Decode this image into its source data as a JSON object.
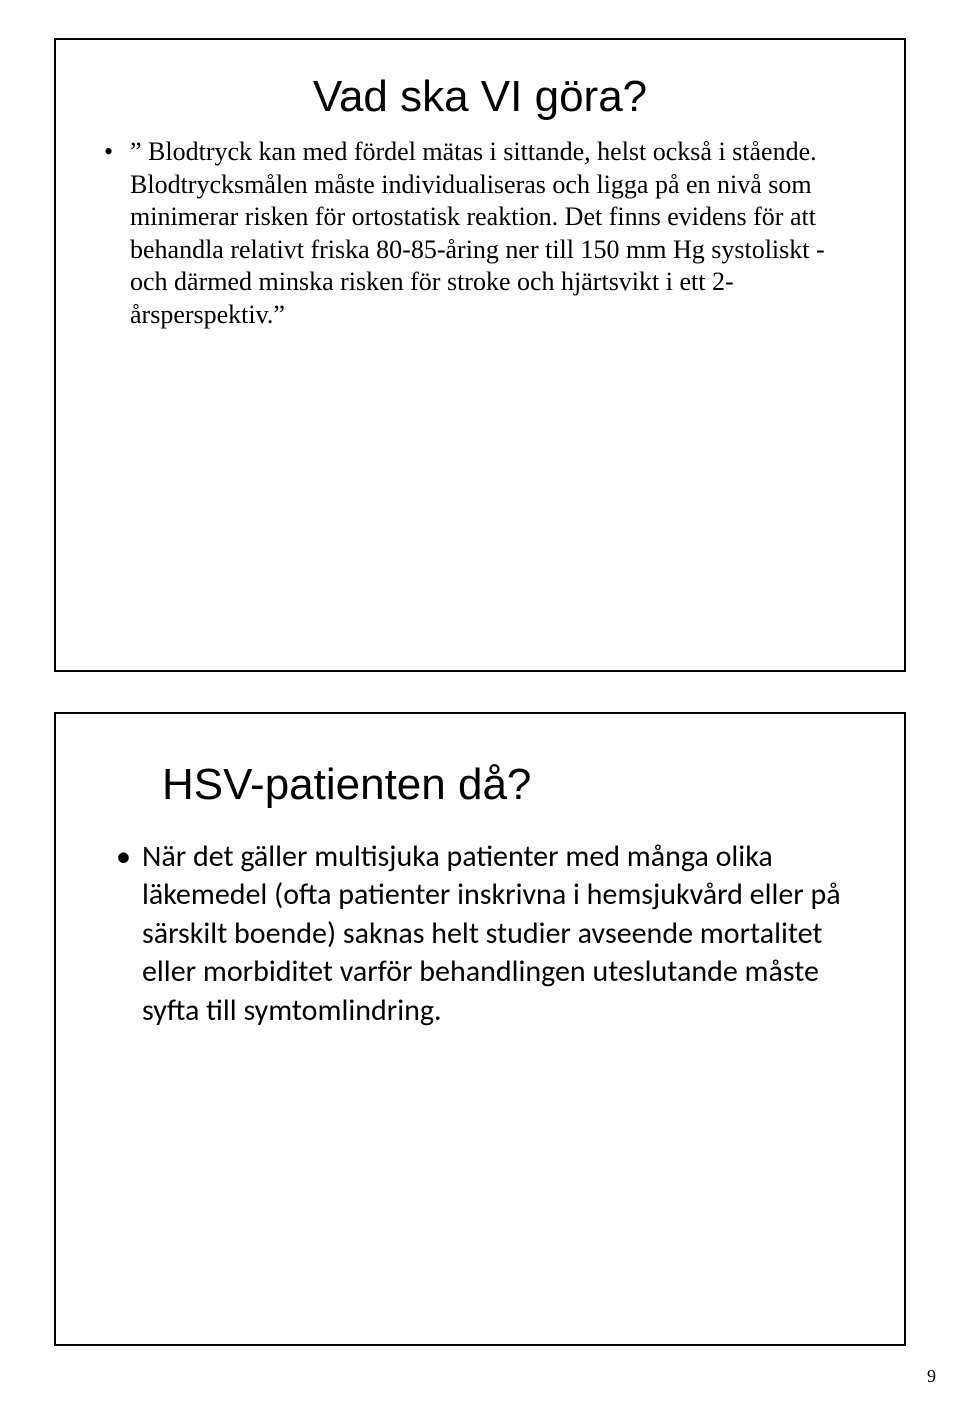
{
  "slide1": {
    "title": "Vad ska VI göra?",
    "bullet": "” Blodtryck kan med fördel mätas i sittande, helst också i stående. Blodtrycksmålen måste individualiseras och ligga på en nivå som minimerar risken för ortostatisk reaktion. Det finns evidens för att behandla relativt friska 80-85-åring ner till 150 mm Hg systoliskt - och därmed minska risken för stroke och hjärtsvikt i ett 2-årsperspektiv.”"
  },
  "slide2": {
    "title": "HSV-patienten då?",
    "bullet": "När det gäller multisjuka patienter med många olika läkemedel (ofta patienter inskrivna i hemsjukvård eller på särskilt boende) saknas helt studier avseende mortalitet eller morbiditet varför behandlingen uteslutande måste syfta till symtomlindring."
  },
  "page_number": "9"
}
